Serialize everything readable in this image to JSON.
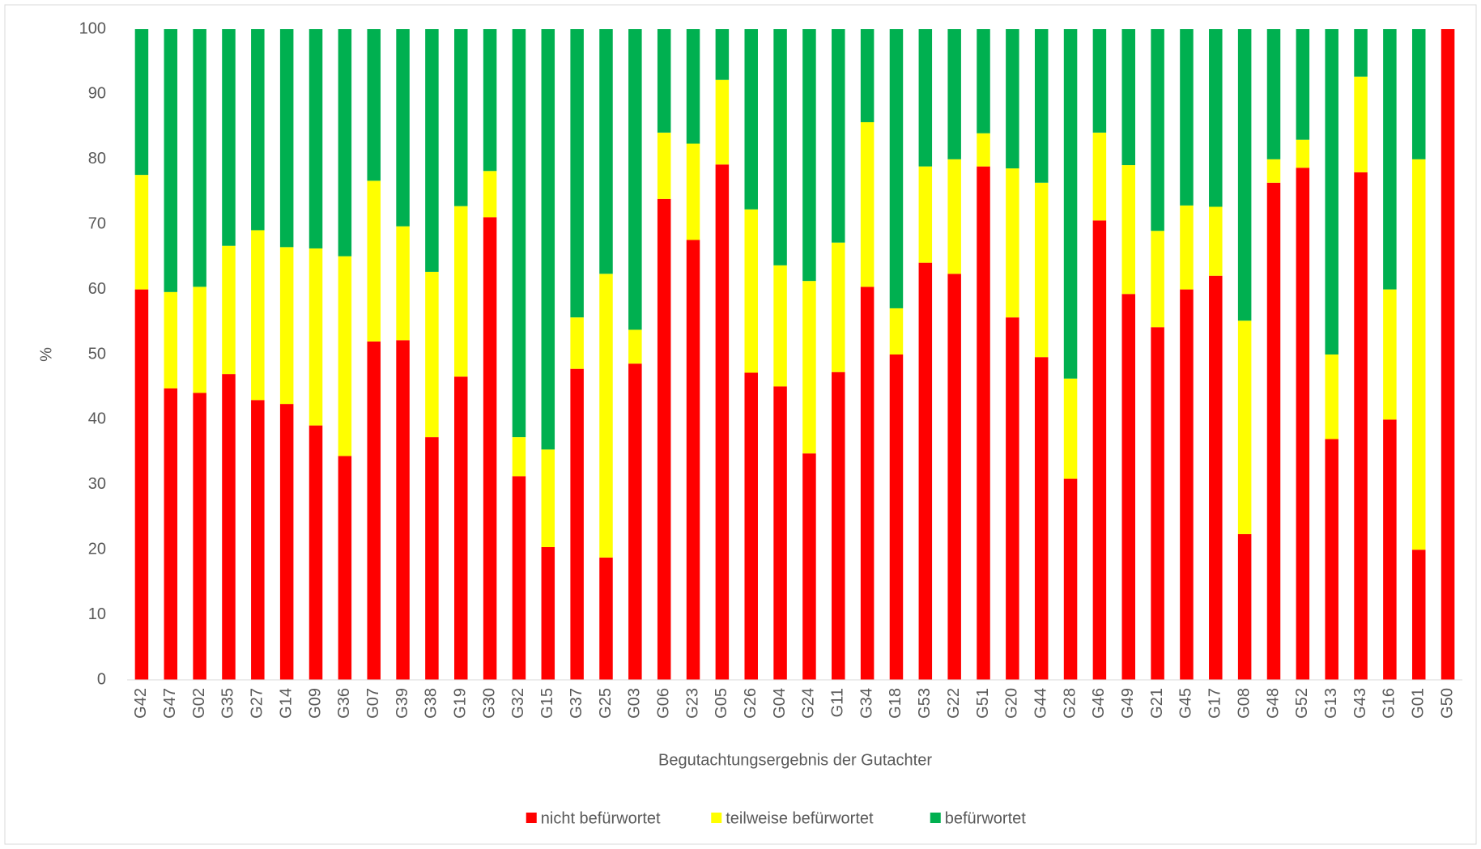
{
  "chart_data": {
    "type": "stacked_bar",
    "xlabel": "Begutachtungsergebnis der Gutachter",
    "ylabel": "%",
    "categories": [
      "G42",
      "G47",
      "G02",
      "G35",
      "G27",
      "G14",
      "G09",
      "G36",
      "G07",
      "G39",
      "G38",
      "G19",
      "G30",
      "G32",
      "G15",
      "G37",
      "G25",
      "G03",
      "G06",
      "G23",
      "G05",
      "G26",
      "G04",
      "G24",
      "G11",
      "G34",
      "G18",
      "G53",
      "G22",
      "G51",
      "G20",
      "G44",
      "G28",
      "G46",
      "G49",
      "G21",
      "G45",
      "G17",
      "G08",
      "G48",
      "G52",
      "G13",
      "G43",
      "G16",
      "G01",
      "G50"
    ],
    "series": [
      {
        "name": "nicht befürwortet",
        "color": "#ff0000",
        "values": [
          60,
          44.8,
          44.1,
          47,
          43,
          42.4,
          39.1,
          34.4,
          52,
          52.2,
          37.3,
          46.6,
          71.1,
          31.3,
          20.4,
          47.8,
          18.8,
          48.6,
          73.9,
          67.6,
          79.2,
          47.2,
          45.1,
          34.8,
          47.3,
          60.4,
          50,
          64.1,
          62.4,
          78.9,
          55.7,
          49.6,
          30.9,
          70.6,
          59.3,
          54.2,
          60,
          62.1,
          22.4,
          76.4,
          78.7,
          37,
          78,
          40,
          20,
          100
        ]
      },
      {
        "name": "teilweise befürwortet",
        "color": "#ffff00",
        "values": [
          17.6,
          14.8,
          16.3,
          19.7,
          26.1,
          24.1,
          27.2,
          30.7,
          24.7,
          17.5,
          25.4,
          26.2,
          7.1,
          6,
          15,
          7.9,
          43.6,
          5.2,
          10.2,
          14.8,
          13,
          25.1,
          18.6,
          26.5,
          19.9,
          25.3,
          7.1,
          14.8,
          17.6,
          5.1,
          22.9,
          26.8,
          15.4,
          13.5,
          19.8,
          14.8,
          12.9,
          10.6,
          32.8,
          3.6,
          4.3,
          13,
          14.7,
          20,
          60,
          0
        ]
      },
      {
        "name": "befürwortet",
        "color": "#00b050",
        "values": [
          22.4,
          40.4,
          39.6,
          33.3,
          30.9,
          33.5,
          33.7,
          34.9,
          23.3,
          30.3,
          37.3,
          27.2,
          21.8,
          62.7,
          64.6,
          44.3,
          37.6,
          46.2,
          15.9,
          17.6,
          7.8,
          27.7,
          36.3,
          38.7,
          32.8,
          14.3,
          42.9,
          21.1,
          20,
          16,
          21.4,
          23.6,
          53.7,
          15.9,
          20.9,
          31,
          27.1,
          27.3,
          44.8,
          20,
          17,
          50,
          7.3,
          40,
          20,
          0
        ]
      }
    ],
    "ylim": [
      0,
      100
    ],
    "yticks": [
      0,
      10,
      20,
      30,
      40,
      50,
      60,
      70,
      80,
      90,
      100
    ],
    "grid": false,
    "legend": "bottom"
  }
}
